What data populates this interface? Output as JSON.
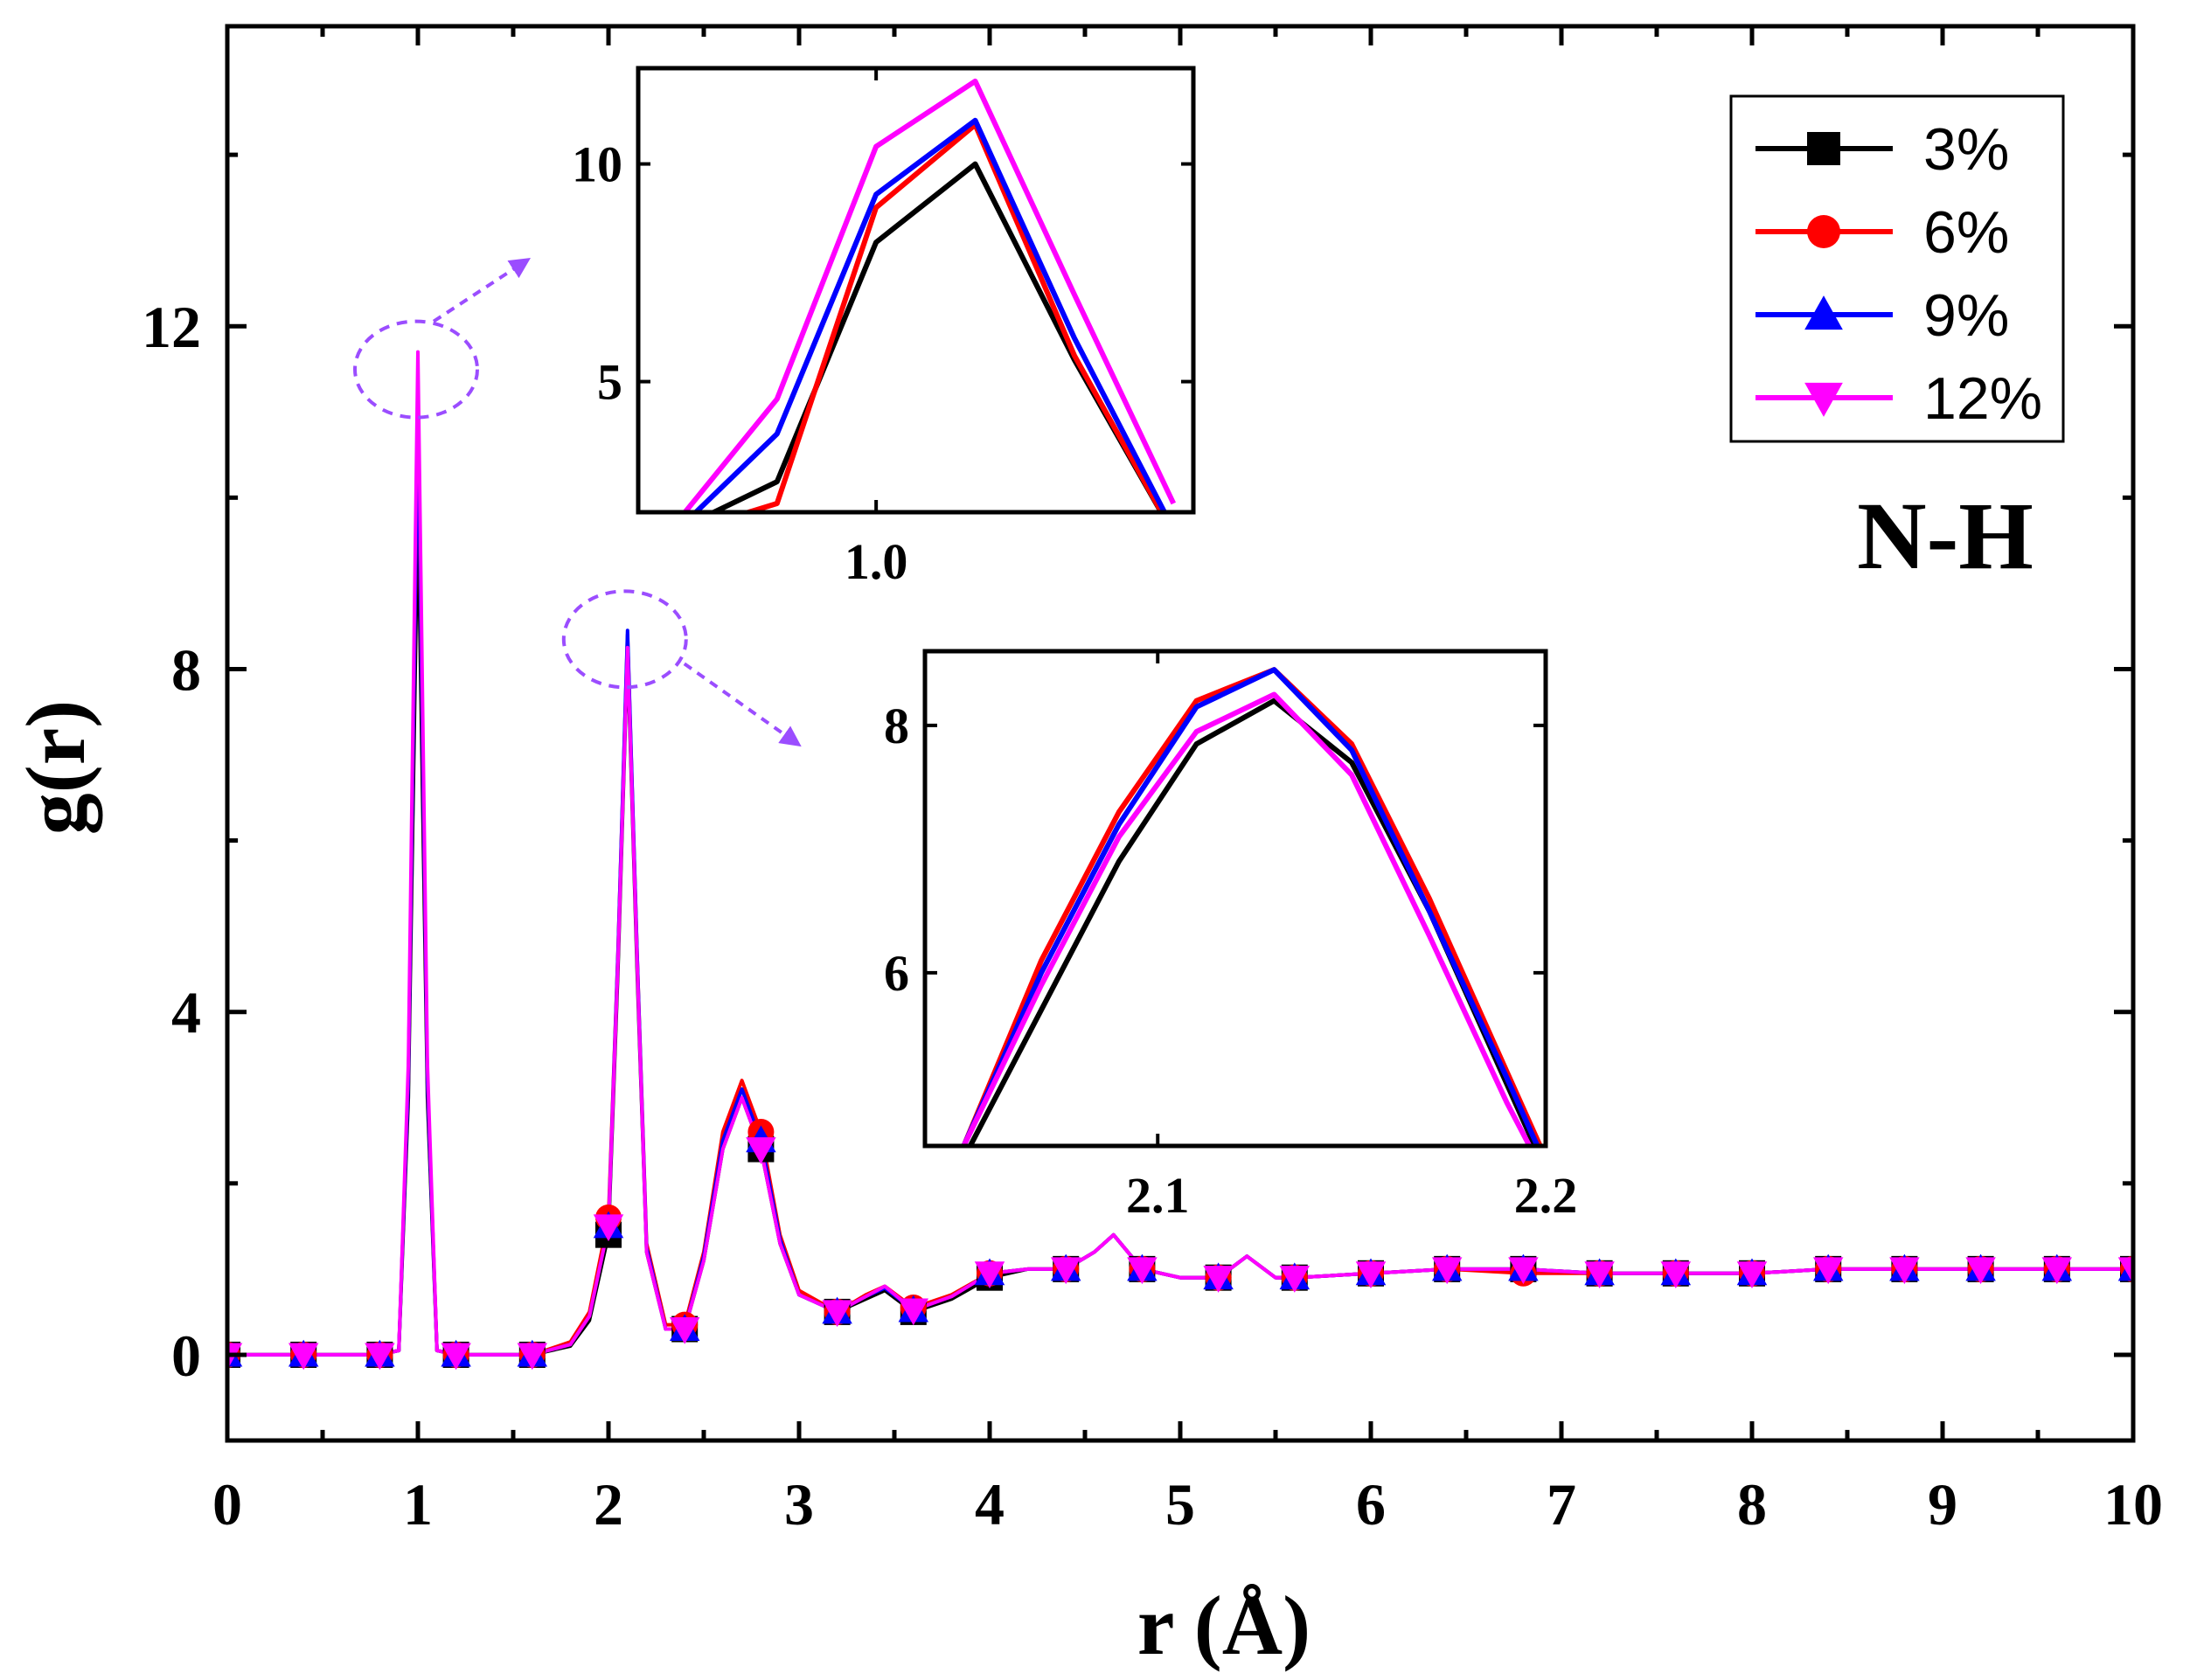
{
  "chart_data": [
    {
      "id": "main",
      "type": "line",
      "title": "",
      "xlabel": "r (Å)",
      "ylabel": "g(r)",
      "xlim": [
        0,
        10
      ],
      "ylim": [
        -1,
        15.5
      ],
      "xticks": [
        0,
        1,
        2,
        3,
        4,
        5,
        6,
        7,
        8,
        9,
        10
      ],
      "xtick_labels": [
        "0",
        "1",
        "2",
        "3",
        "4",
        "5",
        "6",
        "7",
        "8",
        "9",
        "10"
      ],
      "yticks": [
        0,
        4,
        8,
        12
      ],
      "ytick_labels": [
        "0",
        "4",
        "8",
        "12"
      ],
      "x": [
        0,
        0.4,
        0.8,
        0.9,
        0.95,
        1.0,
        1.05,
        1.1,
        1.2,
        1.6,
        1.8,
        1.9,
        2.0,
        2.05,
        2.1,
        2.15,
        2.2,
        2.3,
        2.4,
        2.5,
        2.6,
        2.7,
        2.8,
        2.9,
        3.0,
        3.2,
        3.35,
        3.45,
        3.6,
        3.8,
        4.0,
        4.2,
        4.4,
        4.55,
        4.65,
        4.8,
        5.0,
        5.2,
        5.35,
        5.5,
        5.6,
        6.0,
        6.4,
        6.8,
        7.2,
        7.6,
        8.0,
        8.4,
        8.8,
        9.2,
        9.6,
        10.0
      ],
      "series": [
        {
          "name": "3%",
          "color": "#000000",
          "marker": "square",
          "values": [
            0,
            0,
            0,
            0.05,
            3.0,
            9.9,
            3.0,
            0.05,
            0,
            0,
            0.1,
            0.4,
            1.4,
            4.5,
            8.2,
            4.5,
            1.2,
            0.3,
            0.3,
            1.1,
            2.4,
            3.0,
            2.4,
            1.3,
            0.7,
            0.5,
            0.65,
            0.75,
            0.5,
            0.65,
            0.9,
            1.0,
            1.0,
            1.2,
            1.4,
            1.0,
            0.9,
            0.9,
            1.15,
            0.9,
            0.9,
            0.95,
            1.0,
            1.0,
            0.95,
            0.95,
            0.95,
            1.0,
            1.0,
            1.0,
            1.0,
            1.0
          ]
        },
        {
          "name": "6%",
          "color": "#ff0000",
          "marker": "circle",
          "values": [
            0,
            0,
            0,
            0.05,
            3.2,
            10.9,
            3.2,
            0.05,
            0,
            0,
            0.15,
            0.5,
            1.6,
            4.7,
            8.4,
            4.7,
            1.3,
            0.35,
            0.35,
            1.2,
            2.6,
            3.2,
            2.6,
            1.4,
            0.75,
            0.5,
            0.7,
            0.8,
            0.55,
            0.7,
            0.95,
            1.0,
            1.0,
            1.2,
            1.4,
            1.0,
            0.9,
            0.9,
            1.15,
            0.9,
            0.9,
            0.95,
            1.0,
            0.95,
            0.95,
            0.95,
            0.95,
            1.0,
            1.0,
            1.0,
            1.0,
            1.0
          ]
        },
        {
          "name": "9%",
          "color": "#0000ff",
          "marker": "triangle-up",
          "values": [
            0,
            0,
            0,
            0.05,
            3.2,
            11.0,
            3.2,
            0.05,
            0,
            0,
            0.12,
            0.45,
            1.5,
            4.7,
            8.45,
            4.7,
            1.25,
            0.3,
            0.3,
            1.15,
            2.5,
            3.1,
            2.5,
            1.35,
            0.7,
            0.5,
            0.68,
            0.78,
            0.52,
            0.68,
            0.95,
            1.0,
            1.0,
            1.2,
            1.4,
            1.0,
            0.9,
            0.9,
            1.15,
            0.9,
            0.9,
            0.95,
            1.0,
            1.0,
            0.95,
            0.95,
            0.95,
            1.0,
            1.0,
            1.0,
            1.0,
            1.0
          ]
        },
        {
          "name": "12%",
          "color": "#ff00ff",
          "marker": "triangle-down",
          "values": [
            0,
            0,
            0,
            0.05,
            3.4,
            11.7,
            3.4,
            0.05,
            0,
            0,
            0.12,
            0.45,
            1.5,
            4.6,
            8.25,
            4.6,
            1.2,
            0.3,
            0.3,
            1.1,
            2.4,
            3.0,
            2.4,
            1.3,
            0.7,
            0.5,
            0.68,
            0.8,
            0.52,
            0.68,
            0.95,
            1.0,
            1.0,
            1.2,
            1.4,
            1.0,
            0.9,
            0.9,
            1.15,
            0.9,
            0.9,
            0.95,
            1.0,
            1.0,
            0.95,
            0.95,
            0.95,
            1.0,
            1.0,
            1.0,
            1.0,
            1.0
          ]
        }
      ],
      "marker_x": [
        0,
        0.4,
        0.8,
        1.2,
        1.6,
        2.0,
        2.4,
        2.8,
        3.2,
        3.6,
        4.0,
        4.4,
        4.8,
        5.2,
        5.6,
        6.0,
        6.4,
        6.8,
        7.2,
        7.6,
        8.0,
        8.4,
        8.8,
        9.2,
        9.6,
        10.0
      ],
      "legend": {
        "position": "top-right",
        "entries": [
          "3%",
          "6%",
          "9%",
          "12%"
        ]
      },
      "annotations": [
        {
          "text": "N-H"
        }
      ]
    },
    {
      "id": "inset-1",
      "type": "line",
      "xlim": [
        0.94,
        1.08
      ],
      "ylim": [
        2,
        12.2
      ],
      "xticks": [
        1.0
      ],
      "xtick_labels": [
        "1.0"
      ],
      "yticks": [
        5,
        10
      ],
      "ytick_labels": [
        "5",
        "10"
      ],
      "x": [
        0.95,
        0.975,
        1.0,
        1.025,
        1.05,
        1.075
      ],
      "series": [
        {
          "name": "3%",
          "color": "#000000",
          "values": [
            1.6,
            2.7,
            8.2,
            10.0,
            5.5,
            1.5
          ]
        },
        {
          "name": "6%",
          "color": "#ff0000",
          "values": [
            1.5,
            2.2,
            9.0,
            10.9,
            5.6,
            1.5
          ]
        },
        {
          "name": "9%",
          "color": "#0000ff",
          "values": [
            1.6,
            3.8,
            9.3,
            11.0,
            6.0,
            1.6
          ]
        },
        {
          "name": "12%",
          "color": "#ff00ff",
          "values": [
            1.8,
            4.6,
            10.4,
            11.9,
            7.0,
            2.2
          ]
        }
      ]
    },
    {
      "id": "inset-2",
      "type": "line",
      "xlim": [
        2.04,
        2.2
      ],
      "ylim": [
        4.6,
        8.6
      ],
      "xticks": [
        2.1,
        2.2
      ],
      "xtick_labels": [
        "2.1",
        "2.2"
      ],
      "yticks": [
        6,
        8
      ],
      "ytick_labels": [
        "6",
        "8"
      ],
      "x": [
        2.05,
        2.07,
        2.09,
        2.11,
        2.13,
        2.15,
        2.17,
        2.19,
        2.2
      ],
      "series": [
        {
          "name": "3%",
          "color": "#000000",
          "values": [
            4.5,
            5.7,
            6.9,
            7.85,
            8.2,
            7.7,
            6.5,
            5.1,
            4.4
          ]
        },
        {
          "name": "6%",
          "color": "#ff0000",
          "values": [
            4.6,
            6.1,
            7.3,
            8.2,
            8.45,
            7.85,
            6.6,
            5.2,
            4.5
          ]
        },
        {
          "name": "9%",
          "color": "#0000ff",
          "values": [
            4.6,
            6.0,
            7.2,
            8.15,
            8.45,
            7.8,
            6.5,
            5.15,
            4.45
          ]
        },
        {
          "name": "12%",
          "color": "#ff00ff",
          "values": [
            4.6,
            5.9,
            7.1,
            7.95,
            8.25,
            7.6,
            6.3,
            4.95,
            4.35
          ]
        }
      ]
    }
  ]
}
